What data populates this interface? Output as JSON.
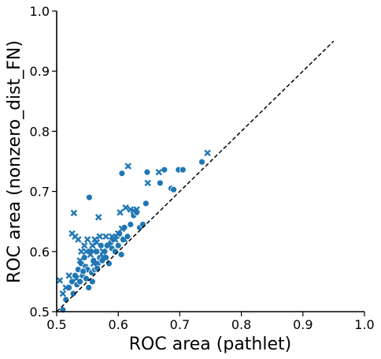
{
  "chart_data": {
    "type": "scatter",
    "title": "",
    "xlabel": "ROC area (pathlet)",
    "ylabel": "ROC area (nonzero_dist_FN)",
    "xlim": [
      0.5,
      1.0
    ],
    "ylim": [
      0.5,
      1.0
    ],
    "x_ticks": [
      "0.5",
      "0.6",
      "0.7",
      "0.8",
      "0.9",
      "1.0"
    ],
    "y_ticks": [
      "0.5",
      "0.6",
      "0.7",
      "0.8",
      "0.9",
      "1.0"
    ],
    "grid": false,
    "legend": "none",
    "reference_line": {
      "style": "dashed",
      "x": [
        0.5,
        0.95
      ],
      "y": [
        0.5,
        0.95
      ],
      "color": "#000000"
    },
    "marker_color": "#1f77b4",
    "series": [
      {
        "marker": "circle",
        "points": [
          [
            0.51,
            0.503
          ],
          [
            0.515,
            0.52
          ],
          [
            0.52,
            0.54
          ],
          [
            0.525,
            0.55
          ],
          [
            0.527,
            0.53
          ],
          [
            0.53,
            0.56
          ],
          [
            0.533,
            0.545
          ],
          [
            0.535,
            0.57
          ],
          [
            0.538,
            0.55
          ],
          [
            0.54,
            0.58
          ],
          [
            0.542,
            0.56
          ],
          [
            0.545,
            0.59
          ],
          [
            0.547,
            0.575
          ],
          [
            0.55,
            0.57
          ],
          [
            0.552,
            0.54
          ],
          [
            0.553,
            0.69
          ],
          [
            0.555,
            0.6
          ],
          [
            0.557,
            0.565
          ],
          [
            0.56,
            0.585
          ],
          [
            0.562,
            0.57
          ],
          [
            0.565,
            0.6
          ],
          [
            0.567,
            0.58
          ],
          [
            0.57,
            0.59
          ],
          [
            0.572,
            0.61
          ],
          [
            0.575,
            0.595
          ],
          [
            0.578,
            0.6
          ],
          [
            0.58,
            0.59
          ],
          [
            0.582,
            0.61
          ],
          [
            0.585,
            0.58
          ],
          [
            0.588,
            0.615
          ],
          [
            0.59,
            0.605
          ],
          [
            0.592,
            0.62
          ],
          [
            0.595,
            0.6
          ],
          [
            0.598,
            0.625
          ],
          [
            0.6,
            0.61
          ],
          [
            0.602,
            0.63
          ],
          [
            0.605,
            0.595
          ],
          [
            0.606,
            0.73
          ],
          [
            0.608,
            0.62
          ],
          [
            0.61,
            0.64
          ],
          [
            0.615,
            0.625
          ],
          [
            0.62,
            0.645
          ],
          [
            0.625,
            0.66
          ],
          [
            0.63,
            0.665
          ],
          [
            0.635,
            0.64
          ],
          [
            0.64,
            0.645
          ],
          [
            0.645,
            0.68
          ],
          [
            0.647,
            0.732
          ],
          [
            0.668,
            0.714
          ],
          [
            0.675,
            0.736
          ],
          [
            0.686,
            0.705
          ],
          [
            0.69,
            0.703
          ],
          [
            0.698,
            0.736
          ],
          [
            0.705,
            0.736
          ],
          [
            0.736,
            0.749
          ],
          [
            0.543,
            0.567
          ],
          [
            0.548,
            0.555
          ],
          [
            0.558,
            0.55
          ],
          [
            0.566,
            0.572
          ],
          [
            0.574,
            0.585
          ]
        ]
      },
      {
        "marker": "x",
        "points": [
          [
            0.505,
            0.552
          ],
          [
            0.51,
            0.53
          ],
          [
            0.515,
            0.54
          ],
          [
            0.52,
            0.56
          ],
          [
            0.525,
            0.63
          ],
          [
            0.528,
            0.664
          ],
          [
            0.53,
            0.625
          ],
          [
            0.532,
            0.555
          ],
          [
            0.535,
            0.62
          ],
          [
            0.538,
            0.585
          ],
          [
            0.54,
            0.6
          ],
          [
            0.545,
            0.61
          ],
          [
            0.548,
            0.6
          ],
          [
            0.55,
            0.62
          ],
          [
            0.555,
            0.595
          ],
          [
            0.558,
            0.61
          ],
          [
            0.56,
            0.6
          ],
          [
            0.562,
            0.62
          ],
          [
            0.565,
            0.615
          ],
          [
            0.568,
            0.657
          ],
          [
            0.57,
            0.625
          ],
          [
            0.575,
            0.6
          ],
          [
            0.58,
            0.625
          ],
          [
            0.585,
            0.61
          ],
          [
            0.59,
            0.625
          ],
          [
            0.595,
            0.62
          ],
          [
            0.6,
            0.63
          ],
          [
            0.603,
            0.665
          ],
          [
            0.606,
            0.638
          ],
          [
            0.61,
            0.62
          ],
          [
            0.612,
            0.673
          ],
          [
            0.616,
            0.742
          ],
          [
            0.62,
            0.67
          ],
          [
            0.625,
            0.668
          ],
          [
            0.63,
            0.67
          ],
          [
            0.648,
            0.714
          ],
          [
            0.666,
            0.732
          ],
          [
            0.745,
            0.764
          ],
          [
            0.56,
            0.58
          ],
          [
            0.575,
            0.59
          ]
        ]
      }
    ]
  }
}
